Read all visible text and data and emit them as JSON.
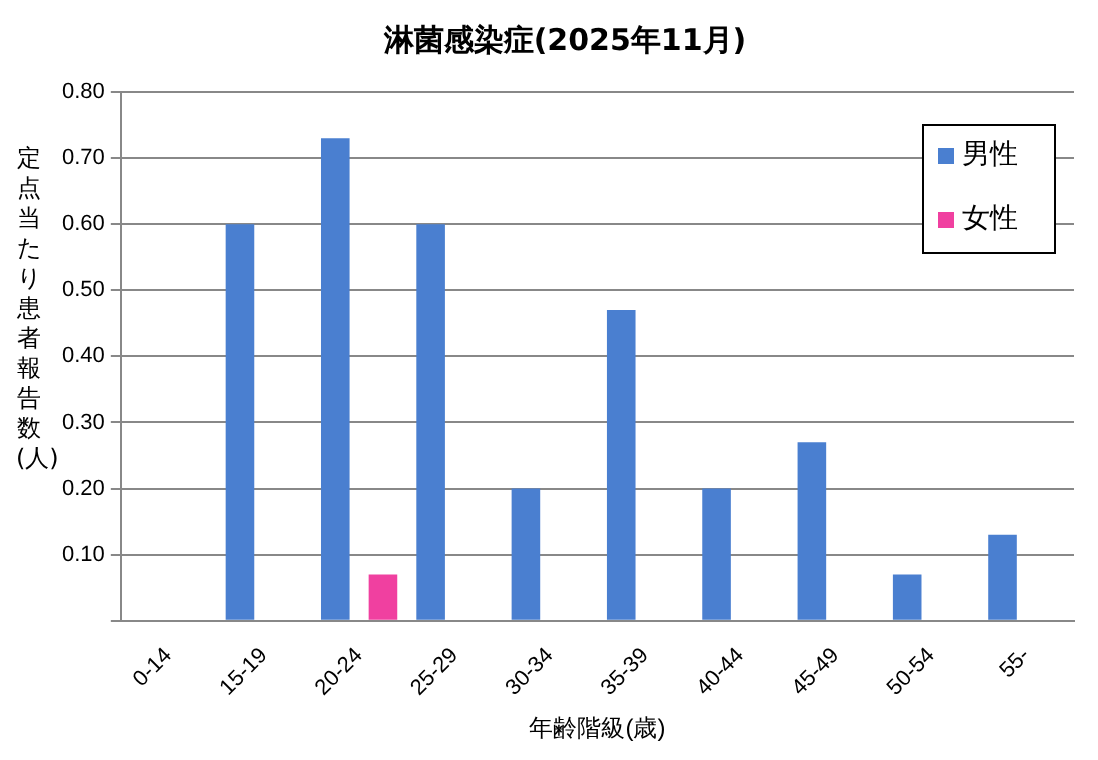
{
  "chart_data": {
    "type": "bar",
    "title": "淋菌感染症(2025年11月)",
    "xlabel": "年齢階級(歳)",
    "ylabel": "定点当たり患者報告数(人)",
    "categories": [
      "0-14",
      "15-19",
      "20-24",
      "25-29",
      "30-34",
      "35-39",
      "40-44",
      "45-49",
      "50-54",
      "55-"
    ],
    "series": [
      {
        "name": "男性",
        "color": "#4a7fd0",
        "values": [
          0,
          0.6,
          0.73,
          0.6,
          0.2,
          0.47,
          0.2,
          0.27,
          0.07,
          0.13
        ]
      },
      {
        "name": "女性",
        "color": "#f040a0",
        "values": [
          0,
          0,
          0.07,
          0,
          0,
          0,
          0,
          0,
          0,
          0
        ]
      }
    ],
    "ylim": [
      0,
      0.8
    ],
    "yticks": [
      {
        "value": 0,
        "label": null
      },
      {
        "value": 0.1,
        "label": "0.10"
      },
      {
        "value": 0.2,
        "label": "0.20"
      },
      {
        "value": 0.3,
        "label": "0.30"
      },
      {
        "value": 0.4,
        "label": "0.40"
      },
      {
        "value": 0.5,
        "label": "0.50"
      },
      {
        "value": 0.6,
        "label": "0.60"
      },
      {
        "value": 0.7,
        "label": "0.70"
      },
      {
        "value": 0.8,
        "label": "0.80"
      }
    ],
    "grid": "y",
    "legend": "top right"
  }
}
